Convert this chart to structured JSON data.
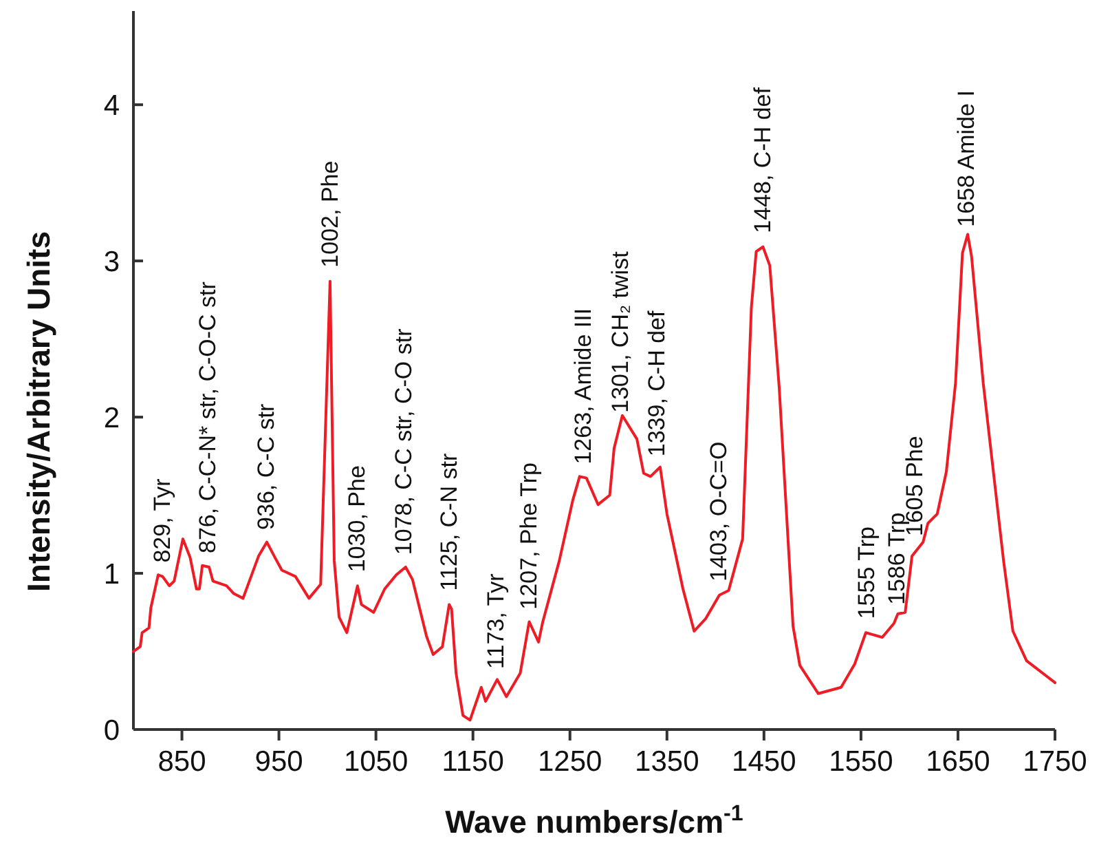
{
  "chart_data": {
    "type": "line",
    "xlabel": "Wave numbers/cm$^{-1}$",
    "ylabel": "Intensity/Arbitrary Units",
    "xlim": [
      800,
      1750
    ],
    "ylim": [
      0,
      4.6
    ],
    "xticks": [
      850,
      950,
      1050,
      1150,
      1250,
      1350,
      1450,
      1550,
      1650,
      1750
    ],
    "yticks": [
      0,
      1,
      2,
      3,
      4
    ],
    "grid": false,
    "marker": "none",
    "line_style": "solid",
    "series": [
      {
        "color": "#ee1c25",
        "x": [
          800,
          807,
          809,
          816,
          818,
          825.5,
          830,
          837,
          842,
          851,
          858.5,
          865,
          868,
          871,
          878,
          882,
          896,
          903.5,
          913,
          929,
          937.5,
          946,
          953,
          967,
          981,
          993,
          1002.7,
          1007,
          1012,
          1020,
          1031,
          1035,
          1047.6,
          1059,
          1071,
          1080.6,
          1087.7,
          1102,
          1109,
          1118.5,
          1125.5,
          1128,
          1132.6,
          1139.7,
          1147,
          1158.6,
          1163,
          1175,
          1184.5,
          1198.7,
          1208,
          1217.6,
          1222,
          1239,
          1253,
          1260,
          1267,
          1279,
          1291,
          1295.5,
          1304,
          1319,
          1326,
          1333,
          1343,
          1350,
          1366.5,
          1378,
          1390,
          1404,
          1413.6,
          1428,
          1437,
          1442,
          1449,
          1456,
          1465.7,
          1480,
          1487,
          1506,
          1529.5,
          1543.6,
          1555,
          1572,
          1584,
          1588,
          1595.6,
          1602.6,
          1614,
          1619,
          1628.6,
          1638,
          1647.5,
          1654.6,
          1660,
          1664,
          1676,
          1697,
          1706.6,
          1720.7,
          1750
        ],
        "values": [
          0.5,
          0.53,
          0.62,
          0.65,
          0.78,
          0.99,
          0.98,
          0.92,
          0.95,
          1.22,
          1.1,
          0.9,
          0.9,
          1.05,
          1.04,
          0.95,
          0.92,
          0.87,
          0.84,
          1.11,
          1.2,
          1.1,
          1.02,
          0.98,
          0.84,
          0.93,
          2.87,
          1.08,
          0.72,
          0.62,
          0.92,
          0.8,
          0.75,
          0.9,
          0.99,
          1.04,
          0.96,
          0.6,
          0.48,
          0.53,
          0.8,
          0.77,
          0.36,
          0.09,
          0.06,
          0.27,
          0.18,
          0.32,
          0.21,
          0.36,
          0.69,
          0.56,
          0.69,
          1.08,
          1.47,
          1.62,
          1.61,
          1.44,
          1.5,
          1.8,
          2.01,
          1.86,
          1.64,
          1.62,
          1.68,
          1.38,
          0.9,
          0.63,
          0.71,
          0.86,
          0.89,
          1.22,
          2.7,
          3.06,
          3.09,
          2.97,
          2.19,
          0.66,
          0.41,
          0.23,
          0.27,
          0.42,
          0.62,
          0.59,
          0.68,
          0.74,
          0.75,
          1.11,
          1.2,
          1.32,
          1.38,
          1.65,
          2.22,
          3.05,
          3.17,
          3.03,
          2.22,
          1.08,
          0.63,
          0.44,
          0.3
        ]
      }
    ],
    "annotations": [
      {
        "text": "829, Tyr",
        "x": 829,
        "y": 0.98
      },
      {
        "text": "876, C-C-N* str, C-O-C str",
        "x": 876,
        "y": 1.04
      },
      {
        "text": "936, C-C str",
        "x": 936,
        "y": 1.19
      },
      {
        "text": "1002, Phe",
        "x": 1002,
        "y": 2.87
      },
      {
        "text": "1030, Phe",
        "x": 1030,
        "y": 0.92
      },
      {
        "text": "1078, C-C str, C-O str",
        "x": 1078,
        "y": 1.03
      },
      {
        "text": "1125, C-N str",
        "x": 1125,
        "y": 0.8
      },
      {
        "text": "1173, Tyr",
        "x": 1173,
        "y": 0.3
      },
      {
        "text": "1207, Phe Trp",
        "x": 1207,
        "y": 0.68
      },
      {
        "text": "1263, Amide III",
        "x": 1263,
        "y": 1.61
      },
      {
        "text": "1301, CH₂ twist",
        "x": 1301,
        "y": 1.94
      },
      {
        "text": "1339, C-H def",
        "x": 1339,
        "y": 1.66
      },
      {
        "text": "1403, O-C=O",
        "x": 1403,
        "y": 0.86
      },
      {
        "text": "1448, C-H def",
        "x": 1448,
        "y": 3.09
      },
      {
        "text": "1555 Trp",
        "x": 1555,
        "y": 0.62
      },
      {
        "text": "1586 Trp",
        "x": 1586,
        "y": 0.71
      },
      {
        "text": "1605 Phe",
        "x": 1605,
        "y": 1.15
      },
      {
        "text": "1658 Amide I",
        "x": 1658,
        "y": 3.13
      }
    ]
  }
}
